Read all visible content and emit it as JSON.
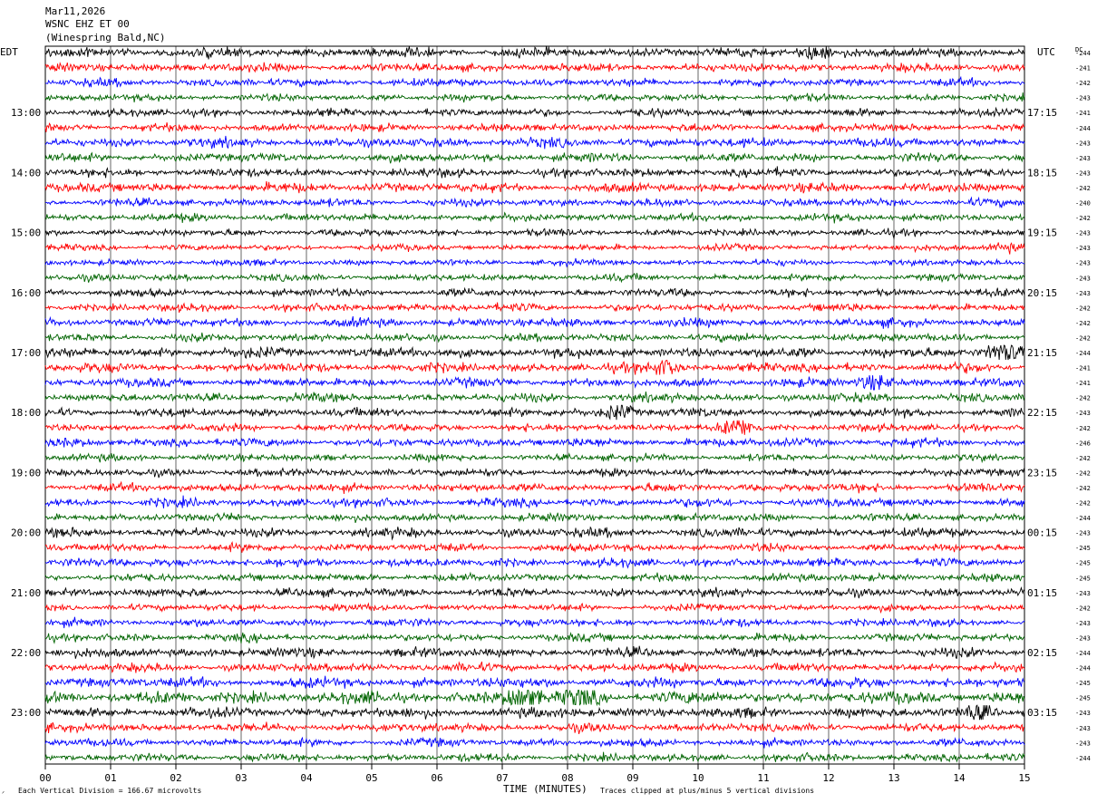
{
  "header": {
    "date": "Mar11,2026",
    "station": "WSNC EHZ ET 00",
    "location": "(Winespring Bald,NC)"
  },
  "labels": {
    "left_tz": "EDT",
    "right_tz": "UTC",
    "dc_label": "DC",
    "x_title": "TIME (MINUTES)",
    "footer_left": "Each Vertical Division =  166.67 microvolts",
    "footer_right": "Traces clipped at plus/minus 5 vertical divisions"
  },
  "colors": {
    "trace_cycle": [
      "#000000",
      "#ff0000",
      "#0000ff",
      "#006400"
    ],
    "grid": "#000000",
    "background": "#ffffff"
  },
  "chart_data": {
    "type": "line",
    "title": "",
    "xlabel": "TIME (MINUTES)",
    "ylabel": "",
    "xlim": [
      0,
      15
    ],
    "x_ticks": [
      "00",
      "01",
      "02",
      "03",
      "04",
      "05",
      "06",
      "07",
      "08",
      "09",
      "10",
      "11",
      "12",
      "13",
      "14",
      "15"
    ],
    "grid": true,
    "n_traces": 48,
    "traces_per_hour": 4,
    "left_hour_labels": [
      "13:00",
      "14:00",
      "15:00",
      "16:00",
      "17:00",
      "18:00",
      "19:00",
      "20:00",
      "21:00",
      "22:00",
      "23:00"
    ],
    "right_hour_labels": [
      "17:15",
      "18:15",
      "19:15",
      "20:15",
      "21:15",
      "22:15",
      "23:15",
      "00:15",
      "01:15",
      "02:15",
      "03:15"
    ],
    "dc_offsets": [
      "-244",
      "-241",
      "-242",
      "-243",
      "-241",
      "-244",
      "-243",
      "-243",
      "-243",
      "-242",
      "-240",
      "-242",
      "-243",
      "-243",
      "-243",
      "-243",
      "-243",
      "-242",
      "-242",
      "-242",
      "-244",
      "-241",
      "-241",
      "-242",
      "-243",
      "-242",
      "-246",
      "-242",
      "-242",
      "-242",
      "-242",
      "-244",
      "-243",
      "-245",
      "-245",
      "-245",
      "-243",
      "-242",
      "-243",
      "-243",
      "-244",
      "-244",
      "-245",
      "-245",
      "-243",
      "-243",
      "-243",
      "-244"
    ],
    "amplitude_scale": [
      1.2,
      1.1,
      1.0,
      0.9,
      1.0,
      1.0,
      1.2,
      1.1,
      1.1,
      1.2,
      1.0,
      1.0,
      0.9,
      0.8,
      0.8,
      0.9,
      1.0,
      1.0,
      1.1,
      1.0,
      1.3,
      1.2,
      1.1,
      1.1,
      1.1,
      1.0,
      1.1,
      0.9,
      1.0,
      1.1,
      1.1,
      1.0,
      1.2,
      1.0,
      1.1,
      1.0,
      1.1,
      0.9,
      1.0,
      1.0,
      1.2,
      1.1,
      1.3,
      1.6,
      1.3,
      1.1,
      1.0,
      1.0
    ],
    "events": [
      {
        "trace": 0,
        "minute": 11.8,
        "amplitude": 1.8
      },
      {
        "trace": 13,
        "minute": 14.7,
        "amplitude": 1.5
      },
      {
        "trace": 20,
        "minute": 14.7,
        "amplitude": 2.5
      },
      {
        "trace": 21,
        "minute": 9.5,
        "amplitude": 1.8
      },
      {
        "trace": 22,
        "minute": 12.7,
        "amplitude": 1.9
      },
      {
        "trace": 24,
        "minute": 8.8,
        "amplitude": 1.8
      },
      {
        "trace": 25,
        "minute": 10.6,
        "amplitude": 2.2
      },
      {
        "trace": 43,
        "minute": 7.3,
        "amplitude": 2.4
      },
      {
        "trace": 43,
        "minute": 8.2,
        "amplitude": 2.0
      },
      {
        "trace": 44,
        "minute": 14.3,
        "amplitude": 1.8
      }
    ]
  }
}
